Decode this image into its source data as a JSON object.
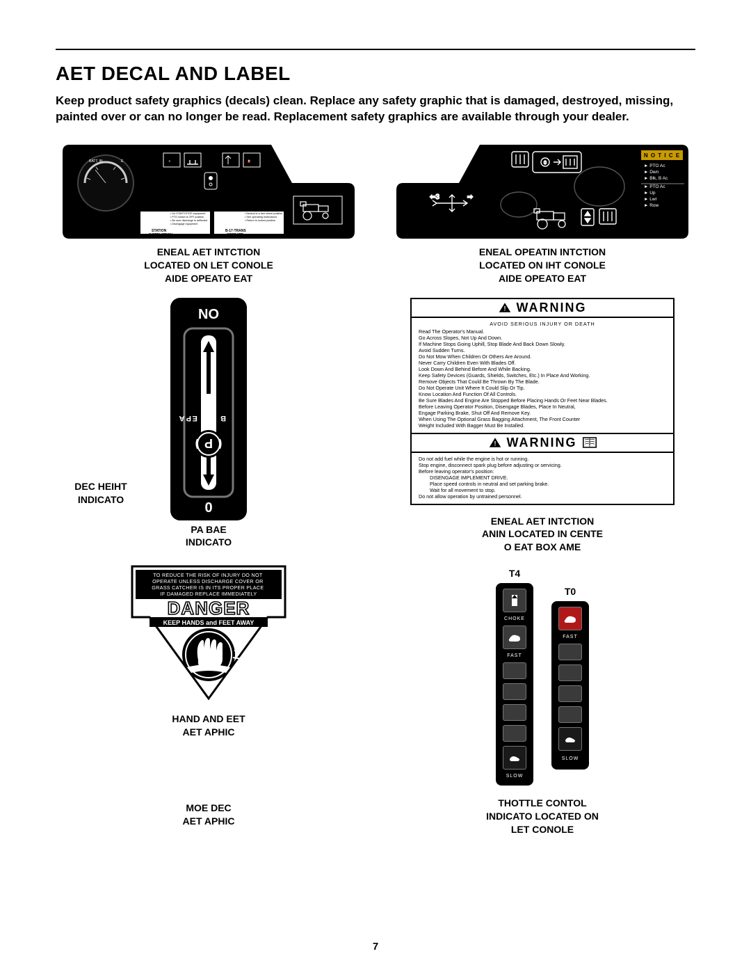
{
  "page": {
    "title": "AET DECAL AND LABEL",
    "intro": "Keep product safety graphics (decals) clean. Replace any safety graphic that is damaged, destroyed, missing, painted over or can no longer be read. Replacement safety graphics are available through your dealer.",
    "number": "7"
  },
  "left_console": {
    "gauge_left": "BATT. IN",
    "gauge_right": "E",
    "box1_title": "STATION\nINSTRUCTION",
    "box1_lines": "• Do START/STOP equipment\n• PTO switch is OFF position\n• Be sure discharge is deflected\n• Disengage equipment",
    "box2_title": "B-17-TRANS\nOPERATE",
    "box2_lines": "• Neutral is a free wheel position\n• See operating instructions\n• Return to locked position",
    "caption": "ENEAL AET INTCTION\nLOCATED ON LET CONOLE\nAIDE OPEATO EAT"
  },
  "right_console": {
    "notice_title": "N O T I  C E",
    "notice_lines": "► PTO Ac\n► Dwn\n► Blk, B Ac\n► PTO Ac\n► Up\n► Lwr\n► Row",
    "caption": "ENEAL OPEATIN INTCTION\nLOCATED ON IHT CONOLE\nAIDE OPEATO EAT"
  },
  "parkbrake": {
    "top_label": "NO",
    "bottom_label": "0",
    "side_letters": "PA  B  A  E",
    "p_letter": "P",
    "left_caption": "DEC HEIHT\nINDICATO",
    "center_caption": "PA BAE\nINDICATO"
  },
  "danger": {
    "lines": "TO REDUCE THE RISK OF INJURY DO NOT\nOPERATE UNLESS DISCHARGE COVER OR\nGRASS CATCHER IS IN ITS PROPER PLACE\nIF DAMAGED REPLACE IMMEDIATELY",
    "word": "DANGER",
    "strip": "KEEP HANDS and FEET AWAY",
    "caption": "HAND AND EET\nAET APHIC",
    "lower_caption": "MOE DEC\nAET APHIC"
  },
  "warning": {
    "bar_text": "WARNING",
    "section1_header": "AVOID  SERIOUS  INJURY  OR  DEATH",
    "section1_lines": [
      "Read The Operator's Manual.",
      "Go Across Slopes, Not Up And Down.",
      "If Machine Stops Going Uphill, Stop Blade And Back Down Slowly.",
      "Avoid Sudden Turns.",
      "Do Not Mow When Children Or Others Are Around.",
      "Never Carry Children Even With Blades Off.",
      "Look Down And Behind Before And While Backing.",
      "Keep Safety Devices (Guards, Shields, Switches, Etc.) In Place And Working.",
      "Remove Objects That Could Be Thrown By The Blade.",
      "Do Not Operate Unit Where It Could Slip Or Tip.",
      "Know Location And Function Of All Controls.",
      "Be Sure Blades And Engine Are Stopped Before Placing Hands Or Feet Near Blades.",
      "Before Leaving Operator Position, Disengage Blades, Place In Neutral,",
      "Engage Parking Brake, Shut Off And Remove Key.",
      "When Using The Optional Grass Bagging Attachment, The Front Counter",
      "Weight Included With Bagger Must Be Installed."
    ],
    "section2_lines": [
      "Do not add fuel while the engine is hot or running.",
      "Stop engine, disconnect spark plug before adjusting or servicing.",
      "Before leaving operator's position:",
      "DISENGAGE IMPLEMENT DRIVE.",
      "Place speed controls in neutral and set parking brake.",
      "Wait for all movement to stop.",
      "Do not allow operation by untrained personnel."
    ],
    "caption": "ENEAL AET INTCTION\nANIN  LOCATED IN CENTE\nO EAT BOX AME"
  },
  "throttle": {
    "t4": "T4",
    "t0": "T0",
    "choke": "CHOKE",
    "fast": "FAST",
    "slow": "SLOW",
    "caption": "THOTTLE CONTOL\nINDICATO  LOCATED ON\nLET CONOLE"
  },
  "colors": {
    "black": "#000000",
    "white": "#ffffff",
    "grey": "#3a3a3a",
    "notice": "#c99a00",
    "red": "#b01919"
  }
}
